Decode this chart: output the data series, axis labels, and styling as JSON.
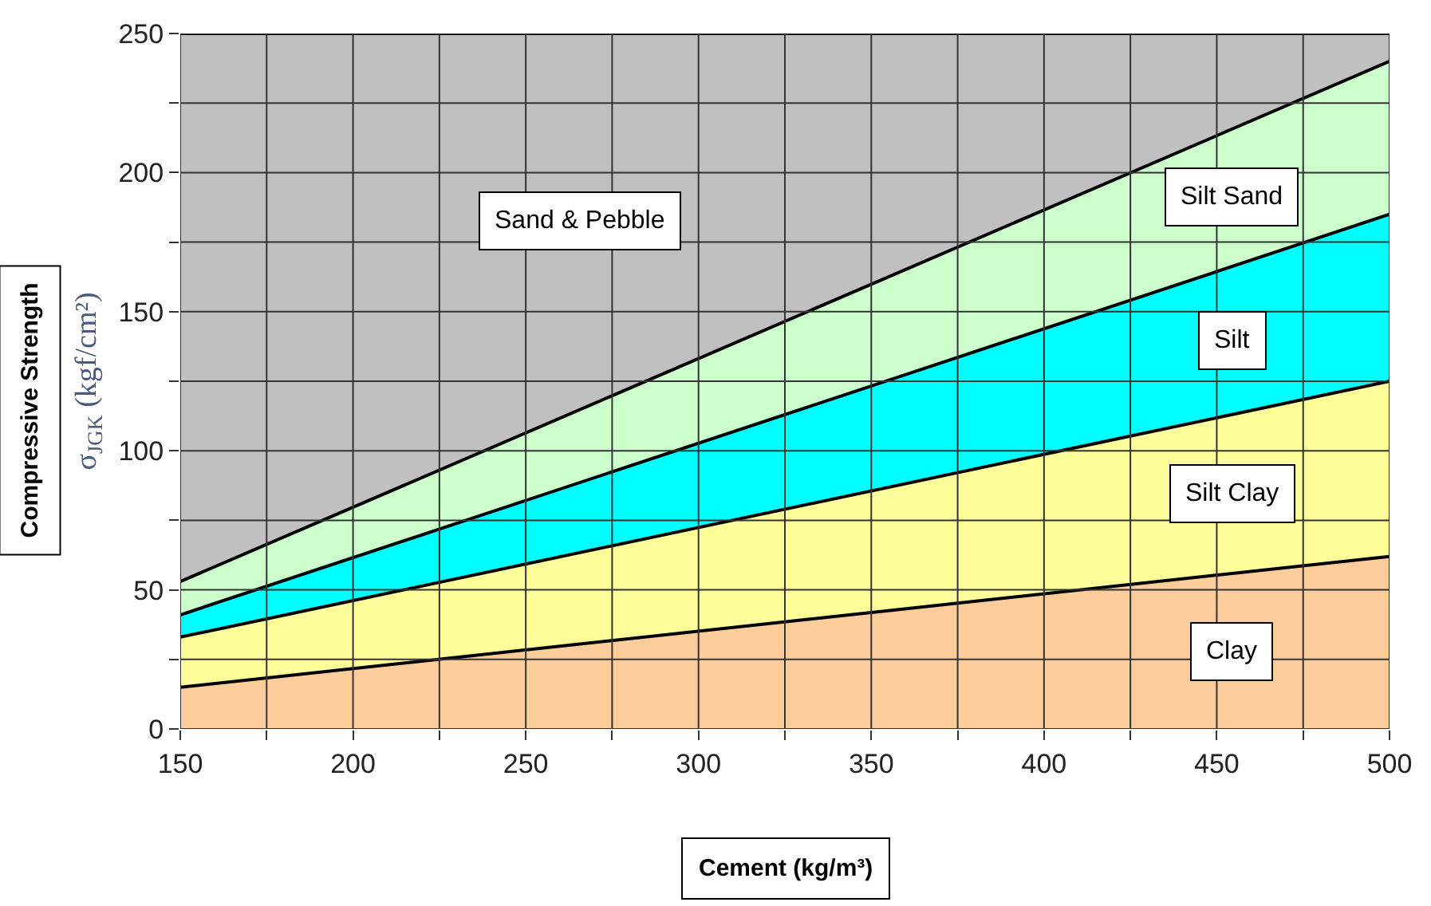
{
  "chart_data": {
    "type": "area",
    "x": [
      150,
      500
    ],
    "series": [
      {
        "name": "Clay",
        "color": "#fccc9a",
        "values": [
          15,
          62
        ]
      },
      {
        "name": "Silt Clay",
        "color": "#fdfd99",
        "values": [
          33,
          125
        ]
      },
      {
        "name": "Silt",
        "color": "#00ffff",
        "values": [
          41,
          185
        ]
      },
      {
        "name": "Silt Sand",
        "color": "#ccffcc",
        "values": [
          53,
          240
        ]
      },
      {
        "name": "Sand & Pebble",
        "color": "#c0c0c0",
        "values": [
          250,
          250
        ]
      }
    ],
    "xlabel": "Cement (kg/m³)",
    "ylabel": "σ$_{JGK}$ (kgf/cm²)",
    "annotations": [
      "Compressive Strength"
    ],
    "xlim": [
      150,
      500
    ],
    "ylim": [
      0,
      250
    ],
    "xticks": [
      150,
      {
        "value": 175,
        "label": null
      },
      200,
      {
        "value": 225,
        "label": null
      },
      250,
      {
        "value": 275,
        "label": null
      },
      300,
      {
        "value": 325,
        "label": null
      },
      350,
      {
        "value": 375,
        "label": null
      },
      400,
      {
        "value": 425,
        "label": null
      },
      450,
      {
        "value": 475,
        "label": null
      },
      500
    ],
    "yticks": [
      0,
      {
        "value": 25,
        "label": null
      },
      50,
      {
        "value": 75,
        "label": null
      },
      100,
      {
        "value": 125,
        "label": null
      },
      150,
      {
        "value": 175,
        "label": null
      },
      200,
      {
        "value": 225,
        "label": null
      },
      250
    ],
    "grid": true,
    "legend": false,
    "marker": "none",
    "line_style": "solid"
  }
}
